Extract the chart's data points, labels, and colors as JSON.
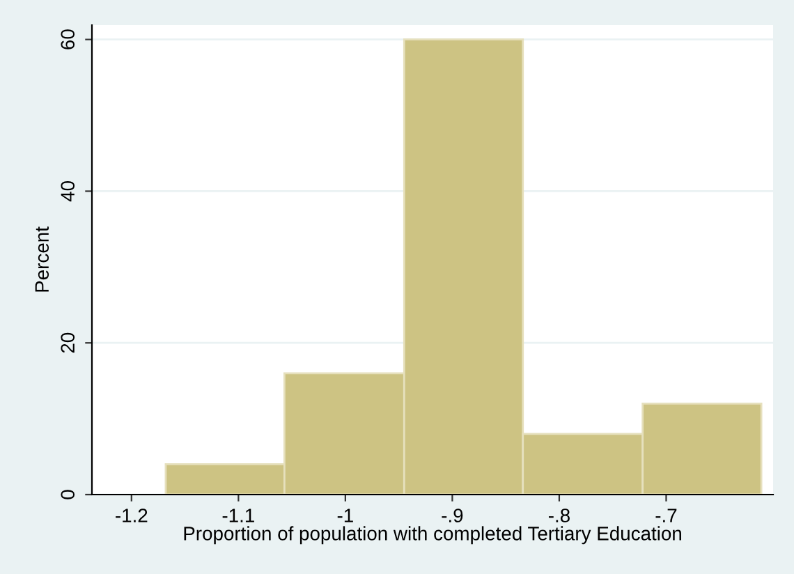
{
  "chart_data": {
    "type": "histogram",
    "xlabel": "Proportion of population with completed Tertiary Education",
    "ylabel": "Percent",
    "bins": [
      -1.168,
      -1.057,
      -0.945,
      -0.834,
      -0.722,
      -0.611
    ],
    "values": [
      4,
      16,
      60,
      8,
      12
    ],
    "color": "#cdc383",
    "xlim": [
      -1.237,
      -0.6
    ],
    "ylim": [
      0,
      61.9
    ],
    "xticks": [
      -1.2,
      -1.1,
      -1,
      {
        "value": -0.9,
        "label": "-.9"
      },
      {
        "value": -0.8,
        "label": "-.8"
      },
      {
        "value": -0.7,
        "label": "-.7"
      }
    ],
    "yticks": [
      0,
      20,
      40,
      60
    ],
    "grid": "y"
  }
}
